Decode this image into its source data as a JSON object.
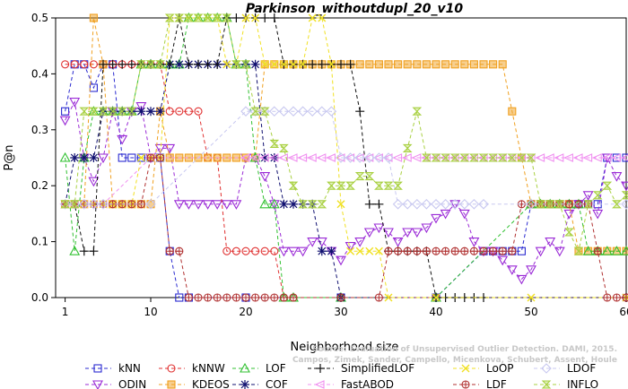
{
  "chart_data": {
    "type": "line",
    "title": "Parkinson_withoutdupl_20_v10",
    "xlabel": "Neighborhood size",
    "ylabel": "P@n",
    "xlim": [
      0,
      60
    ],
    "ylim": [
      0,
      0.5
    ],
    "xticks": [
      "1",
      "10",
      "20",
      "30",
      "40",
      "50",
      "60"
    ],
    "yticks": [
      "0.0",
      "0.1",
      "0.2",
      "0.3",
      "0.4",
      "0.5"
    ],
    "grid": false,
    "legend_position": "bottom",
    "watermark": [
      "Source: Evaluation of Unsupervised Outlier Detection. DAMI, 2015.",
      "Campos, Zimek, Sander, Campello, Micenkova, Schubert, Assent, Houle"
    ],
    "series": [
      {
        "name": "kNN",
        "color": "#2a2ad0",
        "marker": "square",
        "x": [
          1,
          2,
          3,
          4,
          5,
          6,
          7,
          8,
          9,
          10,
          11,
          12,
          13,
          14,
          20,
          30,
          40,
          45,
          46,
          47,
          48,
          49,
          50,
          51,
          52,
          53,
          54,
          55,
          56,
          57,
          58,
          59,
          60
        ],
        "y": [
          0.333,
          0.417,
          0.417,
          0.375,
          0.417,
          0.417,
          0.25,
          0.25,
          0.25,
          0.25,
          0.25,
          0.083,
          0,
          0,
          0,
          0,
          0,
          0.083,
          0.083,
          0.083,
          0.083,
          0.083,
          0.167,
          0.167,
          0.167,
          0.167,
          0.167,
          0.167,
          0.167,
          0.167,
          0.25,
          0.25,
          0.25
        ]
      },
      {
        "name": "ODIN",
        "color": "#9a2ad6",
        "marker": "triangle-down",
        "x": [
          1,
          2,
          3,
          4,
          5,
          6,
          7,
          8,
          9,
          10,
          11,
          12,
          13,
          14,
          15,
          16,
          17,
          18,
          19,
          20,
          21,
          22,
          23,
          24,
          25,
          26,
          27,
          28,
          29,
          30,
          31,
          32,
          33,
          34,
          35,
          36,
          37,
          38,
          39,
          40,
          41,
          42,
          43,
          44,
          45,
          46,
          47,
          48,
          49,
          50,
          51,
          52,
          53,
          54,
          55,
          56,
          57,
          58,
          59,
          60
        ],
        "y": [
          0.317,
          0.35,
          0.25,
          0.208,
          0.25,
          0.333,
          0.283,
          0.333,
          0.342,
          0.25,
          0.267,
          0.267,
          0.167,
          0.167,
          0.167,
          0.167,
          0.167,
          0.167,
          0.167,
          0.25,
          0.25,
          0.217,
          0.167,
          0.083,
          0.083,
          0.083,
          0.1,
          0.1,
          0.083,
          0.067,
          0.092,
          0.1,
          0.117,
          0.125,
          0.117,
          0.1,
          0.117,
          0.117,
          0.125,
          0.142,
          0.15,
          0.167,
          0.15,
          0.1,
          0.083,
          0.083,
          0.067,
          0.05,
          0.033,
          0.05,
          0.083,
          0.1,
          0.083,
          0.15,
          0.167,
          0.183,
          0.15,
          0.25,
          0.217,
          0.2
        ]
      },
      {
        "name": "kNNW",
        "color": "#e03030",
        "marker": "circle",
        "x": [
          1,
          2,
          3,
          4,
          5,
          6,
          7,
          8,
          9,
          10,
          11,
          12,
          13,
          14,
          15,
          16,
          17,
          18,
          19,
          20,
          21,
          22,
          23,
          24,
          25,
          30,
          40,
          60
        ],
        "y": [
          0.417,
          0.417,
          0.417,
          0.417,
          0.417,
          0.417,
          0.417,
          0.417,
          0.417,
          0.417,
          0.417,
          0.333,
          0.333,
          0.333,
          0.333,
          0.25,
          0.25,
          0.083,
          0.083,
          0.083,
          0.083,
          0.083,
          0.083,
          0,
          0,
          0,
          0,
          0
        ]
      },
      {
        "name": "KDEOS",
        "color": "#f0a020",
        "marker": "filled-square",
        "x": [
          1,
          2,
          3,
          4,
          5,
          6,
          7,
          8,
          9,
          10,
          11,
          12,
          13,
          14,
          15,
          16,
          17,
          18,
          19,
          20,
          21,
          22,
          23,
          24,
          25,
          26,
          27,
          28,
          29,
          30,
          31,
          32,
          33,
          34,
          35,
          36,
          37,
          38,
          39,
          40,
          41,
          42,
          43,
          44,
          45,
          46,
          47,
          48,
          49,
          50,
          51,
          52,
          53,
          54,
          55,
          56,
          57,
          58,
          59,
          60
        ],
        "y": [
          0.167,
          0.167,
          0.167,
          0.5,
          0.417,
          0.167,
          0.167,
          0.167,
          0.167,
          0.167,
          0.333,
          0.25,
          0.25,
          0.25,
          0.25,
          0.25,
          0.25,
          0.25,
          0.25,
          0.25,
          0.25,
          0.417,
          0.417,
          0.417,
          0.417,
          0.417,
          0.417,
          0.417,
          0.417,
          0.417,
          0.417,
          0.417,
          0.417,
          0.417,
          0.417,
          0.417,
          0.417,
          0.417,
          0.417,
          0.417,
          0.417,
          0.417,
          0.417,
          0.417,
          0.417,
          0.417,
          0.417,
          0.333,
          0.25,
          0.167,
          0.167,
          0.167,
          0.167,
          0.167,
          0.083,
          0.083,
          0.083,
          0.083,
          0.083,
          0.083
        ]
      },
      {
        "name": "LOF",
        "color": "#30c030",
        "marker": "triangle-up",
        "x": [
          1,
          2,
          3,
          4,
          5,
          6,
          7,
          8,
          9,
          10,
          11,
          12,
          13,
          14,
          15,
          16,
          17,
          18,
          19,
          20,
          21,
          22,
          23,
          24,
          25,
          30,
          40,
          50,
          51,
          52,
          53,
          54,
          55,
          56,
          57,
          58,
          59,
          60
        ],
        "y": [
          0.25,
          0.083,
          0.25,
          0.333,
          0.333,
          0.333,
          0.333,
          0.333,
          0.417,
          0.417,
          0.417,
          0.417,
          0.417,
          0.5,
          0.5,
          0.5,
          0.5,
          0.5,
          0.417,
          0.417,
          0.25,
          0.167,
          0.167,
          0,
          0,
          0,
          0,
          0.167,
          0.167,
          0.167,
          0.167,
          0.167,
          0.167,
          0.083,
          0.083,
          0.083,
          0.083,
          0.083
        ]
      },
      {
        "name": "COF",
        "color": "#101070",
        "marker": "star",
        "x": [
          1,
          2,
          3,
          4,
          5,
          6,
          7,
          8,
          9,
          10,
          11,
          12,
          13,
          14,
          15,
          16,
          17,
          18,
          19,
          20,
          21,
          22,
          23,
          24,
          25,
          26,
          27,
          28,
          29,
          30,
          40,
          60
        ],
        "y": [
          0.167,
          0.25,
          0.25,
          0.25,
          0.333,
          0.333,
          0.333,
          0.333,
          0.333,
          0.333,
          0.333,
          0.417,
          0.417,
          0.417,
          0.417,
          0.417,
          0.417,
          0.417,
          0.417,
          0.417,
          0.417,
          0.25,
          0.25,
          0.167,
          0.167,
          0.167,
          0.167,
          0.083,
          0.083,
          0,
          0,
          0
        ]
      },
      {
        "name": "SimplifiedLOF",
        "color": "#101010",
        "marker": "plus",
        "x": [
          1,
          2,
          3,
          4,
          5,
          6,
          7,
          8,
          9,
          10,
          11,
          12,
          13,
          14,
          15,
          16,
          17,
          18,
          19,
          20,
          21,
          22,
          23,
          24,
          25,
          26,
          27,
          28,
          29,
          30,
          31,
          32,
          33,
          34,
          35,
          36,
          37,
          38,
          39,
          40,
          41,
          42,
          43,
          44,
          45,
          60
        ],
        "y": [
          0.167,
          0.167,
          0.083,
          0.083,
          0.417,
          0.417,
          0.417,
          0.417,
          0.417,
          0.417,
          0.417,
          0.417,
          0.5,
          0.417,
          0.417,
          0.417,
          0.417,
          0.5,
          0.5,
          0.5,
          0.5,
          0.5,
          0.5,
          0.417,
          0.417,
          0.417,
          0.417,
          0.417,
          0.417,
          0.417,
          0.417,
          0.333,
          0.167,
          0.167,
          0.083,
          0.083,
          0.083,
          0.083,
          0.083,
          0,
          0,
          0,
          0,
          0,
          0,
          0
        ]
      },
      {
        "name": "FastABOD",
        "color": "#f090f0",
        "marker": "triangle-left",
        "x": [
          1,
          2,
          3,
          4,
          5,
          10,
          20,
          21,
          22,
          23,
          24,
          25,
          26,
          27,
          28,
          29,
          30,
          31,
          32,
          33,
          34,
          35,
          36,
          37,
          38,
          39,
          40,
          41,
          42,
          43,
          44,
          45,
          46,
          47,
          48,
          49,
          50,
          51,
          52,
          53,
          54,
          55,
          56,
          57,
          58,
          59,
          60
        ],
        "y": [
          0.167,
          0.167,
          0.167,
          0.167,
          0.167,
          0.25,
          0.25,
          0.25,
          0.25,
          0.25,
          0.25,
          0.25,
          0.25,
          0.25,
          0.25,
          0.25,
          0.25,
          0.25,
          0.25,
          0.25,
          0.25,
          0.25,
          0.25,
          0.25,
          0.25,
          0.25,
          0.25,
          0.25,
          0.25,
          0.25,
          0.25,
          0.25,
          0.25,
          0.25,
          0.25,
          0.25,
          0.25,
          0.25,
          0.25,
          0.25,
          0.25,
          0.25,
          0.25,
          0.25,
          0.25,
          0.25,
          0.25
        ]
      },
      {
        "name": "LoOP",
        "color": "#f0e020",
        "marker": "cross",
        "x": [
          1,
          2,
          3,
          4,
          5,
          6,
          7,
          8,
          9,
          10,
          11,
          12,
          13,
          14,
          15,
          16,
          17,
          18,
          19,
          20,
          21,
          22,
          23,
          24,
          25,
          26,
          27,
          28,
          29,
          30,
          31,
          32,
          33,
          34,
          35,
          40,
          50,
          60
        ],
        "y": [
          0.167,
          0.167,
          0.167,
          0.167,
          0.167,
          0.167,
          0.167,
          0.167,
          0.25,
          0.25,
          0.25,
          0.5,
          0.5,
          0.5,
          0.5,
          0.5,
          0.5,
          0.417,
          0.417,
          0.5,
          0.5,
          0.417,
          0.417,
          0.417,
          0.417,
          0.417,
          0.5,
          0.5,
          0.417,
          0.167,
          0.083,
          0.083,
          0.083,
          0.083,
          0,
          0,
          0,
          0
        ]
      },
      {
        "name": "LDF",
        "color": "#b03030",
        "marker": "circle-plus",
        "x": [
          1,
          2,
          3,
          4,
          5,
          6,
          7,
          8,
          9,
          10,
          11,
          12,
          13,
          14,
          15,
          16,
          17,
          18,
          19,
          20,
          21,
          22,
          23,
          24,
          25,
          30,
          34,
          35,
          36,
          37,
          38,
          39,
          40,
          41,
          42,
          43,
          44,
          45,
          46,
          47,
          48,
          49,
          50,
          51,
          52,
          53,
          54,
          55,
          56,
          57,
          58,
          59,
          60
        ],
        "y": [
          0.167,
          0.167,
          0.167,
          0.167,
          0.167,
          0.167,
          0.167,
          0.167,
          0.167,
          0.25,
          0.25,
          0.083,
          0.083,
          0,
          0,
          0,
          0,
          0,
          0,
          0,
          0,
          0,
          0,
          0,
          0,
          0,
          0,
          0.083,
          0.083,
          0.083,
          0.083,
          0.083,
          0.083,
          0.083,
          0.083,
          0.083,
          0.083,
          0.083,
          0.083,
          0.083,
          0.083,
          0.167,
          0.167,
          0.167,
          0.167,
          0.167,
          0.167,
          0.167,
          0.167,
          0.083,
          0,
          0,
          0
        ]
      },
      {
        "name": "LDOF",
        "color": "#c8c8f0",
        "marker": "diamond",
        "x": [
          1,
          2,
          3,
          4,
          5,
          10,
          20,
          21,
          22,
          23,
          24,
          25,
          26,
          27,
          28,
          29,
          30,
          31,
          32,
          33,
          34,
          35,
          36,
          37,
          38,
          39,
          40,
          41,
          42,
          43,
          44,
          45,
          50,
          60
        ],
        "y": [
          0.167,
          0.167,
          0.167,
          0.167,
          0.167,
          0.167,
          0.333,
          0.333,
          0.333,
          0.333,
          0.333,
          0.333,
          0.333,
          0.333,
          0.333,
          0.333,
          0.25,
          0.25,
          0.25,
          0.25,
          0.25,
          0.25,
          0.167,
          0.167,
          0.167,
          0.167,
          0.167,
          0.167,
          0.167,
          0.167,
          0.167,
          0.167,
          0.167,
          0.167
        ]
      },
      {
        "name": "INFLO",
        "color": "#a8d040",
        "marker": "hourglass",
        "x": [
          1,
          2,
          3,
          4,
          5,
          6,
          7,
          8,
          9,
          10,
          11,
          12,
          13,
          14,
          15,
          16,
          17,
          18,
          19,
          20,
          21,
          22,
          23,
          24,
          25,
          26,
          27,
          28,
          29,
          30,
          31,
          32,
          33,
          34,
          35,
          36,
          37,
          38,
          39,
          40,
          41,
          42,
          43,
          44,
          45,
          46,
          47,
          48,
          49,
          50,
          51,
          52,
          53,
          54,
          55,
          56,
          57,
          58,
          59,
          60
        ],
        "y": [
          0.167,
          0.167,
          0.333,
          0.333,
          0.333,
          0.333,
          0.333,
          0.333,
          0.417,
          0.417,
          0.417,
          0.5,
          0.5,
          0.5,
          0.5,
          0.5,
          0.5,
          0.5,
          0.417,
          0.417,
          0.333,
          0.333,
          0.275,
          0.267,
          0.2,
          0.167,
          0.167,
          0.167,
          0.2,
          0.2,
          0.2,
          0.217,
          0.217,
          0.2,
          0.2,
          0.2,
          0.267,
          0.333,
          0.25,
          0.25,
          0.25,
          0.25,
          0.25,
          0.25,
          0.25,
          0.25,
          0.25,
          0.25,
          0.25,
          0.25,
          0.167,
          0.167,
          0.167,
          0.117,
          0.083,
          0.167,
          0.183,
          0.2,
          0.167,
          0.183
        ]
      }
    ]
  }
}
